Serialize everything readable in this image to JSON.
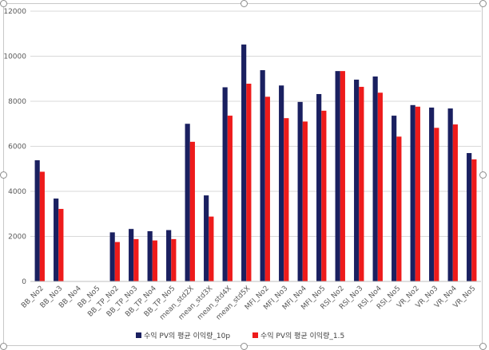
{
  "colors": {
    "series1": "#1a2060",
    "series2": "#ee1b1b",
    "grid": "#d9d9d9",
    "axis": "#bfbfbf"
  },
  "chart_data": {
    "type": "bar",
    "categories": [
      "BB_No2",
      "BB_No3",
      "BB_No4",
      "BB_No5",
      "BB_TP_No2",
      "BB_TP_No3",
      "BB_TP_No4",
      "BB_TP_No5",
      "mean_std2X",
      "mean_std3X",
      "mean_std4X",
      "mean_std5X",
      "MFI_No2",
      "MFI_No3",
      "MFI_No4",
      "MFI_No5",
      "RSI_No2",
      "RSI_No3",
      "RSI_No4",
      "RSI_No5",
      "VR_No2",
      "VR_No3",
      "VR_No4",
      "VR_No5"
    ],
    "series": [
      {
        "name": "수익 PV의 평균 이익량_10p",
        "values": [
          5380,
          3680,
          0,
          0,
          2180,
          2330,
          2230,
          2280,
          7000,
          3820,
          8620,
          10520,
          9380,
          8700,
          7970,
          8320,
          9340,
          8960,
          9100,
          7360,
          7830,
          7720,
          7680,
          5700
        ]
      },
      {
        "name": "수익 PV의 평균 이익량_1.5",
        "values": [
          4870,
          3220,
          0,
          0,
          1750,
          1880,
          1820,
          1880,
          6200,
          2880,
          7360,
          8780,
          8200,
          7250,
          7100,
          7580,
          9340,
          8640,
          8380,
          6430,
          7760,
          6820,
          6970,
          5420
        ]
      }
    ],
    "yticks": [
      "0",
      "2000",
      "4000",
      "6000",
      "8000",
      "10000",
      "12000"
    ],
    "ylim": [
      0,
      12000
    ],
    "grid": true,
    "legend_position": "bottom"
  }
}
